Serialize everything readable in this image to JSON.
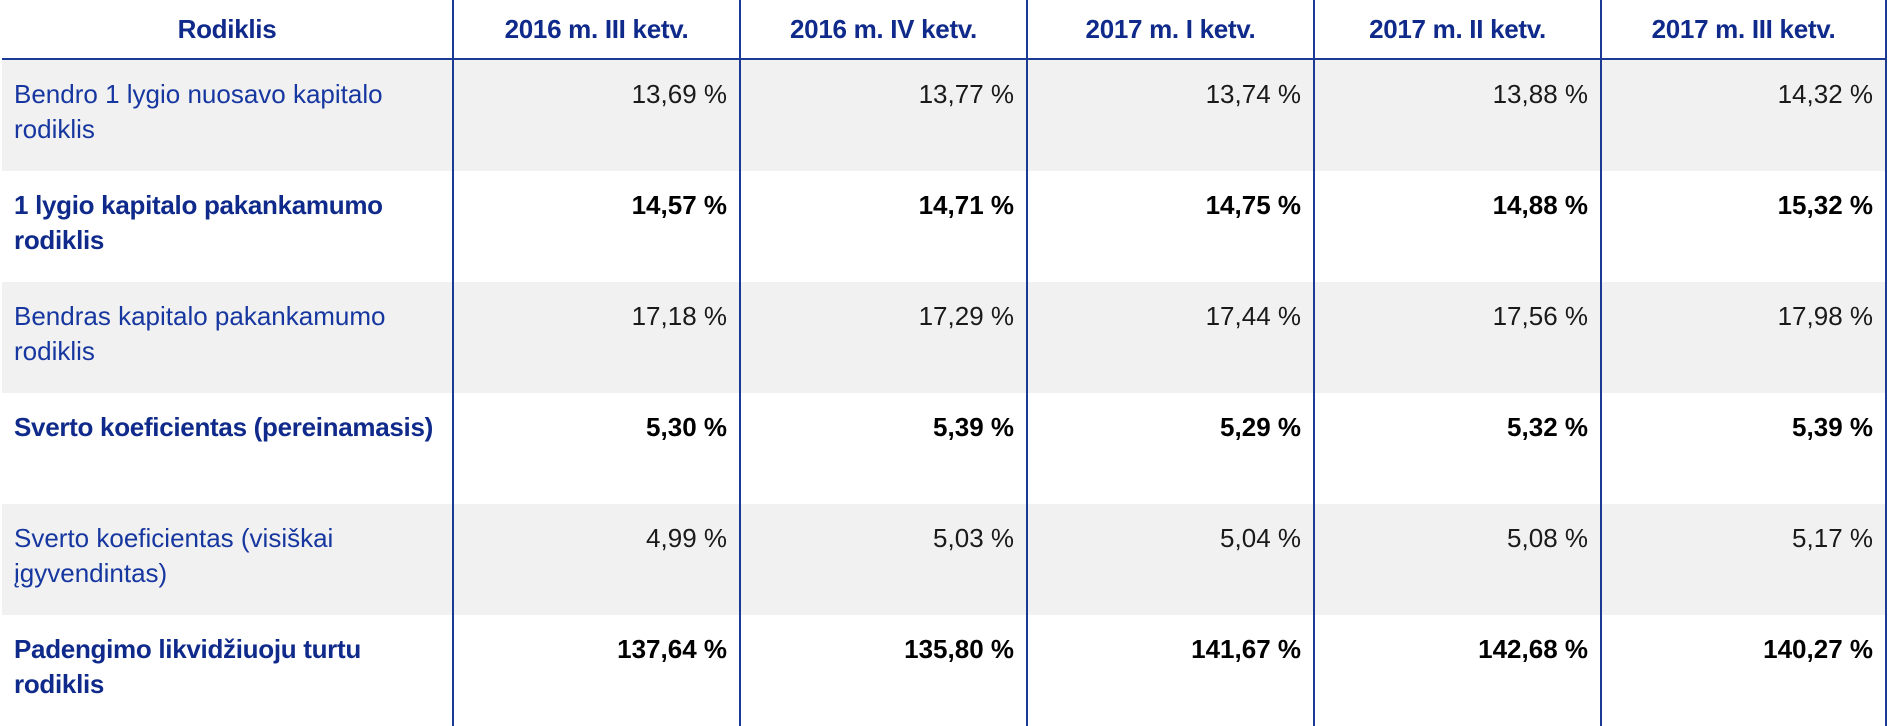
{
  "table": {
    "header": {
      "indicator": "Rodiklis",
      "periods": [
        "2016 m. III ketv.",
        "2016 m. IV ketv.",
        "2017 m. I ketv.",
        "2017 m. II ketv.",
        "2017 m. III ketv."
      ]
    },
    "rows": [
      {
        "label": "Bendro 1 lygio nuosavo kapitalo rodiklis",
        "values": [
          "13,69 %",
          "13,77 %",
          "13,74 %",
          "13,88 %",
          "14,32 %"
        ]
      },
      {
        "label": "1 lygio kapitalo pakankamumo rodiklis",
        "values": [
          "14,57 %",
          "14,71 %",
          "14,75 %",
          "14,88 %",
          "15,32 %"
        ]
      },
      {
        "label": "Bendras kapitalo pakankamumo rodiklis",
        "values": [
          "17,18 %",
          "17,29 %",
          "17,44 %",
          "17,56 %",
          "17,98 %"
        ]
      },
      {
        "label": "Sverto koeficientas (pereinamasis)",
        "values": [
          "5,30 %",
          "5,39 %",
          "5,29 %",
          "5,32 %",
          "5,39 %"
        ]
      },
      {
        "label": "Sverto koeficientas (visiškai įgyvendintas)",
        "values": [
          "4,99 %",
          "5,03 %",
          "5,04 %",
          "5,08 %",
          "5,17 %"
        ]
      },
      {
        "label": "Padengimo likvidžiuoju turtu rodiklis",
        "values": [
          "137,64 %",
          "135,80 %",
          "141,67 %",
          "142,68 %",
          "140,27 %"
        ]
      }
    ]
  }
}
